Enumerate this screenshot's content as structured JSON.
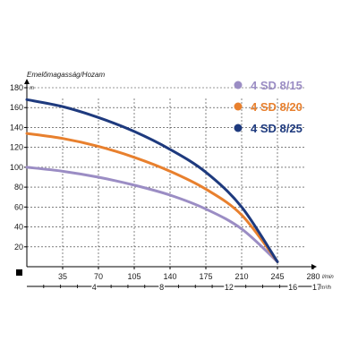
{
  "chart_data": {
    "type": "line",
    "title": "Emelőmagasság/Hozam",
    "y_unit": "m",
    "x_unit": "l/min",
    "x2_unit": "m³/h",
    "ylim": [
      0,
      180
    ],
    "xlim": [
      0,
      280
    ],
    "x2lim": [
      0,
      17
    ],
    "y_ticks": [
      20,
      40,
      60,
      80,
      100,
      120,
      140,
      160,
      180
    ],
    "x_ticks": [
      35,
      70,
      105,
      140,
      175,
      210,
      245,
      280
    ],
    "x2_ticks": [
      4,
      8,
      12,
      16,
      17
    ],
    "x2_ticks_minor": [
      1,
      2,
      3,
      5,
      6,
      7,
      9,
      10,
      11,
      13,
      14,
      15
    ],
    "grid": true,
    "legend_position": "top-right",
    "series": [
      {
        "name": "4 SD 8/15",
        "color": "#9b8dc4",
        "x": [
          0,
          35,
          70,
          105,
          140,
          175,
          210,
          245
        ],
        "y": [
          100,
          96,
          90,
          82,
          72,
          58,
          38,
          5
        ]
      },
      {
        "name": "4 SD 8/20",
        "color": "#e8802e",
        "x": [
          0,
          35,
          70,
          105,
          140,
          175,
          210,
          245
        ],
        "y": [
          134,
          129,
          121,
          110,
          96,
          78,
          52,
          5
        ]
      },
      {
        "name": "4 SD 8/25",
        "color": "#1e3a7e",
        "x": [
          0,
          35,
          70,
          105,
          140,
          175,
          210,
          245
        ],
        "y": [
          168,
          161,
          150,
          136,
          118,
          95,
          60,
          5
        ]
      }
    ]
  }
}
